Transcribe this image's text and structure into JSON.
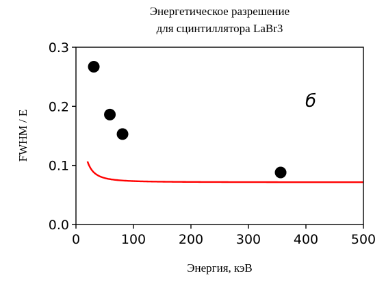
{
  "chart_data": {
    "type": "scatter",
    "title_lines": [
      "Энергетическое разрешение",
      "для сцинтиллятора LaBr3"
    ],
    "xlabel": "Энергия, кэВ",
    "ylabel": "FWHM / E",
    "xlim": [
      0,
      500
    ],
    "ylim": [
      0,
      0.3
    ],
    "x_ticks": [
      0,
      100,
      200,
      300,
      400,
      500
    ],
    "y_ticks": [
      0.0,
      0.1,
      0.2,
      0.3
    ],
    "x_tick_labels": [
      "0",
      "100",
      "200",
      "300",
      "400",
      "500"
    ],
    "y_tick_labels": [
      "0.0",
      "0.1",
      "0.2",
      "0.3"
    ],
    "grid": false,
    "panel_label": "б",
    "series": [
      {
        "type": "scatter",
        "color": "#000000",
        "x": [
          31,
          59,
          81,
          356
        ],
        "y": [
          0.267,
          0.186,
          0.153,
          0.088
        ]
      },
      {
        "type": "line",
        "color": "#ff0000",
        "fit": {
          "a": 0.0714,
          "b": 1.55,
          "c": 0.078
        }
      }
    ]
  }
}
